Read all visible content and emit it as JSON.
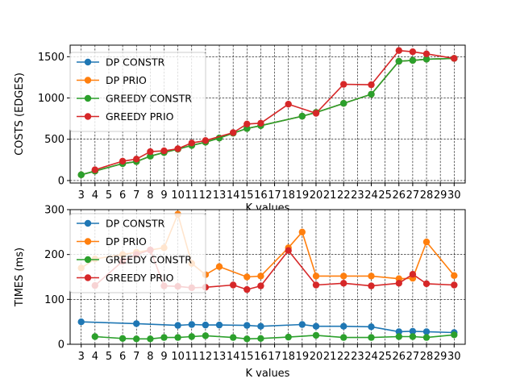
{
  "chart_data": [
    {
      "type": "line",
      "title": "",
      "xlabel": "K values",
      "ylabel": "COSTS (EDGES)",
      "x_ticks": [
        3,
        4,
        5,
        6,
        7,
        8,
        9,
        10,
        11,
        12,
        13,
        14,
        15,
        16,
        17,
        18,
        19,
        20,
        21,
        22,
        23,
        24,
        25,
        26,
        27,
        28,
        29,
        30
      ],
      "xlim": [
        2.2,
        30.8
      ],
      "ylim": [
        -30,
        1640
      ],
      "y_ticks": [
        0,
        500,
        1000,
        1500
      ],
      "grid": true,
      "legend_position": "top-left",
      "series": [
        {
          "name": "DP CONSTR",
          "color": "#1f77b4",
          "x": [
            3,
            4,
            6,
            7,
            8,
            9,
            10,
            11,
            12,
            13,
            14,
            15,
            16,
            19,
            20,
            22,
            24,
            26,
            27,
            28,
            30
          ],
          "y": [
            70,
            115,
            205,
            230,
            295,
            340,
            380,
            425,
            465,
            515,
            575,
            630,
            665,
            780,
            825,
            935,
            1045,
            1445,
            1455,
            1470,
            1480
          ]
        },
        {
          "name": "DP PRIO",
          "color": "#ff7f0e",
          "x": [
            3,
            4,
            6,
            7,
            8,
            9,
            10,
            11,
            12,
            13,
            14,
            15,
            16,
            19,
            20,
            22,
            24,
            26,
            27,
            28,
            30
          ],
          "y": [
            70,
            115,
            205,
            230,
            295,
            340,
            380,
            425,
            465,
            515,
            575,
            630,
            665,
            780,
            825,
            935,
            1045,
            1445,
            1455,
            1470,
            1480
          ]
        },
        {
          "name": "GREEDY CONSTR",
          "color": "#2ca02c",
          "x": [
            3,
            4,
            6,
            7,
            8,
            9,
            10,
            11,
            12,
            13,
            14,
            15,
            16,
            19,
            20,
            22,
            24,
            26,
            27,
            28,
            30
          ],
          "y": [
            70,
            115,
            205,
            230,
            295,
            340,
            380,
            425,
            465,
            515,
            575,
            630,
            665,
            780,
            825,
            935,
            1045,
            1445,
            1455,
            1470,
            1480
          ]
        },
        {
          "name": "GREEDY PRIO",
          "color": "#d62728",
          "x": [
            4,
            6,
            7,
            8,
            9,
            10,
            11,
            12,
            14,
            15,
            16,
            18,
            20,
            22,
            24,
            26,
            27,
            28,
            30
          ],
          "y": [
            130,
            235,
            260,
            350,
            360,
            385,
            455,
            485,
            580,
            685,
            695,
            925,
            815,
            1165,
            1160,
            1575,
            1560,
            1535,
            1480
          ]
        }
      ]
    },
    {
      "type": "line",
      "title": "",
      "xlabel": "K values",
      "ylabel": "TIMES (ms)",
      "x_ticks": [
        3,
        4,
        5,
        6,
        7,
        8,
        9,
        10,
        11,
        12,
        13,
        14,
        15,
        16,
        17,
        18,
        19,
        20,
        21,
        22,
        23,
        24,
        25,
        26,
        27,
        28,
        29,
        30
      ],
      "xlim": [
        2.2,
        30.8
      ],
      "ylim": [
        0,
        300
      ],
      "y_ticks": [
        0,
        100,
        200,
        300
      ],
      "grid": true,
      "legend_position": "top-left",
      "series": [
        {
          "name": "DP CONSTR",
          "color": "#1f77b4",
          "x": [
            3,
            7,
            10,
            11,
            12,
            13,
            15,
            16,
            19,
            20,
            22,
            24,
            26,
            27,
            28,
            30
          ],
          "y": [
            50,
            46,
            42,
            44,
            43,
            43,
            42,
            40,
            44,
            40,
            40,
            39,
            28,
            29,
            28,
            26
          ]
        },
        {
          "name": "DP PRIO",
          "color": "#ff7f0e",
          "x": [
            3,
            4,
            6,
            7,
            8,
            9,
            10,
            11,
            12,
            13,
            15,
            16,
            18,
            19,
            20,
            22,
            24,
            26,
            27,
            28,
            30
          ],
          "y": [
            170,
            190,
            200,
            205,
            210,
            215,
            290,
            180,
            155,
            173,
            150,
            152,
            215,
            250,
            152,
            152,
            152,
            146,
            147,
            228,
            153
          ]
        },
        {
          "name": "GREEDY CONSTR",
          "color": "#2ca02c",
          "x": [
            4,
            6,
            7,
            8,
            9,
            10,
            11,
            12,
            14,
            15,
            16,
            18,
            20,
            22,
            24,
            26,
            27,
            28,
            30
          ],
          "y": [
            17,
            13,
            12,
            12,
            15,
            15,
            17,
            19,
            15,
            12,
            13,
            16,
            20,
            15,
            15,
            17,
            17,
            15,
            21
          ]
        },
        {
          "name": "GREEDY PRIO",
          "color": "#d62728",
          "x": [
            4,
            6,
            7,
            8,
            9,
            10,
            11,
            12,
            14,
            15,
            16,
            18,
            20,
            22,
            24,
            26,
            27,
            28,
            30
          ],
          "y": [
            131,
            185,
            200,
            210,
            130,
            129,
            126,
            127,
            132,
            122,
            130,
            209,
            132,
            136,
            130,
            136,
            156,
            135,
            132
          ]
        }
      ]
    }
  ]
}
